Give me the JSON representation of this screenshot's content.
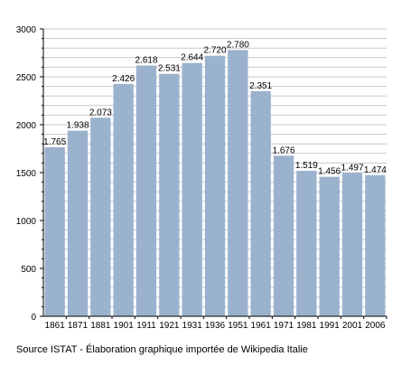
{
  "chart_data": {
    "type": "bar",
    "categories": [
      "1861",
      "1871",
      "1881",
      "1901",
      "1911",
      "1921",
      "1931",
      "1936",
      "1951",
      "1961",
      "1971",
      "1981",
      "1991",
      "2001",
      "2006"
    ],
    "values": [
      1765,
      1938,
      2073,
      2426,
      2618,
      2531,
      2644,
      2720,
      2780,
      2351,
      1676,
      1519,
      1456,
      1497,
      1474
    ],
    "data_labels": [
      "1.765",
      "1.938",
      "2.073",
      "2.426",
      "2.618",
      "2.531",
      "2.644",
      "2.720",
      "2.780",
      "2.351",
      "1.676",
      "1.519",
      "1.456",
      "1.497",
      "1.474"
    ],
    "ylim": [
      0,
      3000
    ],
    "y_ticks": [
      0,
      500,
      1000,
      1500,
      2000,
      2500,
      3000
    ],
    "grid": true,
    "colors": {
      "bar": "#9bb2cd",
      "grid": "#c8c8c8",
      "axis": "#000000"
    }
  },
  "source": "Source ISTAT - Élaboration graphique importée de Wikipedia Italie"
}
